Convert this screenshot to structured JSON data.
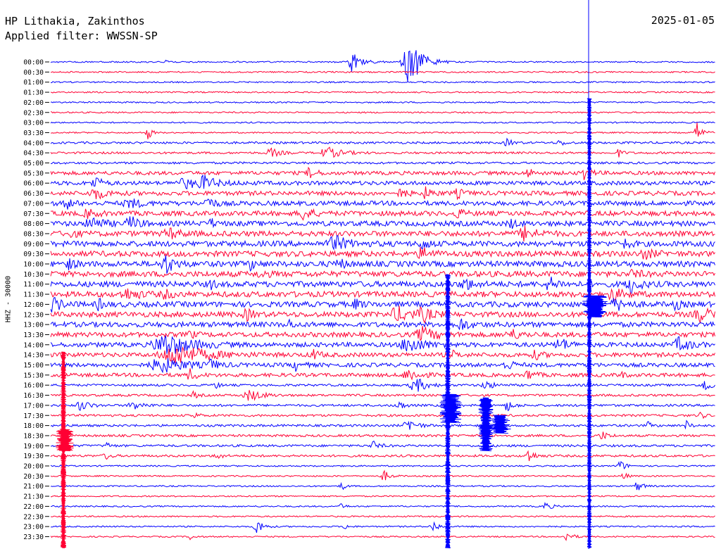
{
  "header": {
    "station": "HP Lithakia, Zakinthos",
    "filter": "Applied filter: WWSSN-SP",
    "date": "2025-01-05"
  },
  "chart_data": {
    "type": "line",
    "ylabel": "HHZ - 30000",
    "row_times": [
      "00:00",
      "00:30",
      "01:00",
      "01:30",
      "02:00",
      "02:30",
      "03:00",
      "03:30",
      "04:00",
      "04:30",
      "05:00",
      "05:30",
      "06:00",
      "06:30",
      "07:00",
      "07:30",
      "08:00",
      "08:30",
      "09:00",
      "09:30",
      "10:00",
      "10:30",
      "11:00",
      "11:30",
      "12:00",
      "12:30",
      "13:00",
      "13:30",
      "14:00",
      "14:30",
      "15:00",
      "15:30",
      "16:00",
      "16:30",
      "17:00",
      "17:30",
      "18:00",
      "18:30",
      "19:00",
      "19:30",
      "20:00",
      "20:30",
      "21:00",
      "21:30",
      "22:00",
      "22:30",
      "23:00",
      "23:30"
    ],
    "colors": {
      "odd": "#0000ff",
      "even": "#ff0033"
    },
    "marker_line_color": "#0000ff"
  }
}
